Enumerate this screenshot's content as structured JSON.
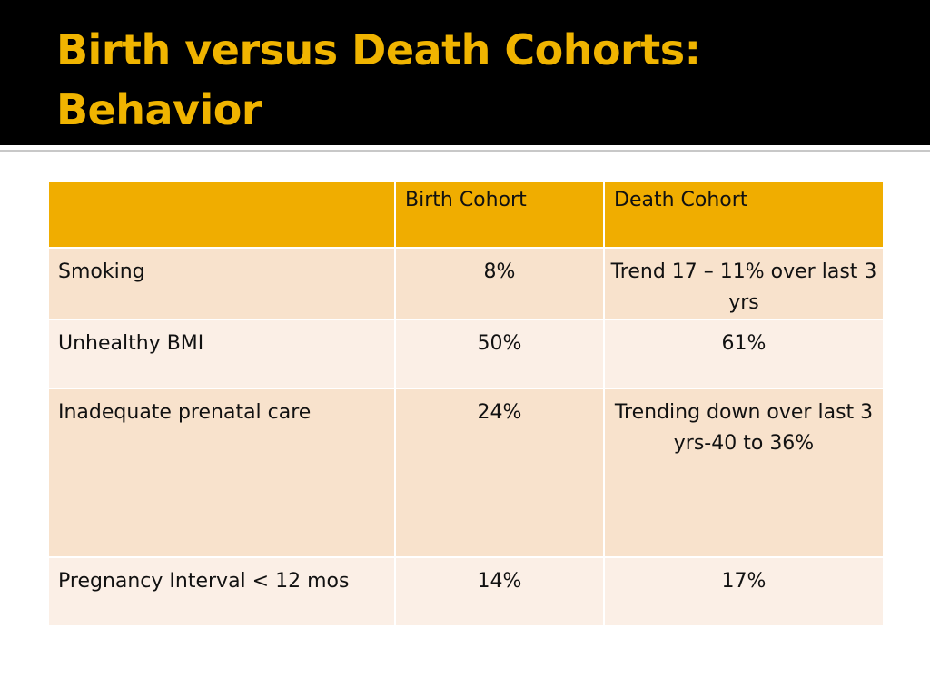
{
  "slide": {
    "title_line1": "Birth versus Death Cohorts:",
    "title_line2": "Behavior"
  },
  "table": {
    "headers": [
      "",
      "Birth Cohort",
      "Death Cohort"
    ],
    "rows": [
      {
        "label": "Smoking",
        "birth": "8%",
        "death": "Trend 17 – 11% over last 3 yrs"
      },
      {
        "label": "Unhealthy BMI",
        "birth": "50%",
        "death": "61%"
      },
      {
        "label": "Inadequate prenatal care",
        "birth": "24%",
        "death": "Trending down over last 3 yrs-40 to 36%"
      },
      {
        "label": "Pregnancy Interval < 12 mos",
        "birth": "14%",
        "death": "17%"
      }
    ]
  },
  "colors": {
    "title_bg": "#000000",
    "title_text": "#f0b400",
    "header_bg": "#f0ad00",
    "row_dark": "#f8e2cc",
    "row_light": "#fbefe6"
  }
}
